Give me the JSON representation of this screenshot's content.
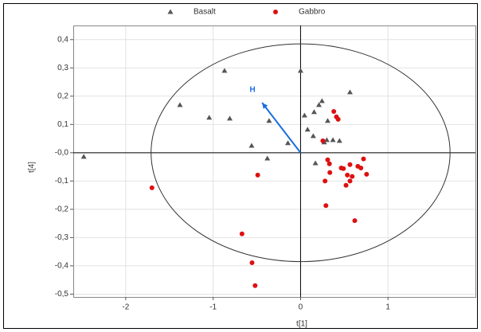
{
  "chart_data": {
    "type": "scatter",
    "x_label": "t[1]",
    "y_label": "t[4]",
    "xlim": [
      -2.6,
      2.0
    ],
    "ylim": [
      -0.51,
      0.45
    ],
    "xticks": [
      -2,
      -1,
      0,
      1
    ],
    "yticks": [
      {
        "value": 0.4,
        "label": "0,4"
      },
      {
        "value": 0.3,
        "label": "0,3"
      },
      {
        "value": 0.2,
        "label": "0,2"
      },
      {
        "value": 0.1,
        "label": "0,1"
      },
      {
        "value": 0,
        "label": "-0,0"
      },
      {
        "value": -0.1,
        "label": "-0,1"
      },
      {
        "value": -0.2,
        "label": "-0,2"
      },
      {
        "value": -0.3,
        "label": "-0,3"
      },
      {
        "value": -0.4,
        "label": "-0,4"
      },
      {
        "value": -0.5,
        "label": "-0,5"
      }
    ],
    "grid": true,
    "legend": "top",
    "ellipse": {
      "x_radius": 1.71,
      "y_radius": 0.385
    },
    "annotations": [
      {
        "text": "H",
        "x": -0.44,
        "y": 0.177,
        "color": "#1a6fe0"
      }
    ],
    "series": [
      {
        "name": "Basalt",
        "color": "#555555",
        "marker": "triangle",
        "x": [
          -2.48,
          -1.38,
          -1.045,
          -0.87,
          -0.81,
          -0.56,
          -0.36,
          -0.38,
          -0.145,
          0.0,
          0.045,
          0.08,
          0.155,
          0.21,
          0.245,
          0.31,
          0.565,
          0.145,
          0.3,
          0.37,
          0.445,
          0.17,
          0.27
        ],
        "values": [
          -0.014,
          0.169,
          0.124,
          0.29,
          0.121,
          0.025,
          0.113,
          -0.02,
          0.034,
          0.29,
          0.132,
          0.082,
          0.144,
          0.169,
          0.183,
          0.113,
          0.214,
          0.059,
          0.045,
          0.045,
          0.042,
          -0.037,
          0.037
        ]
      },
      {
        "name": "Gabbro",
        "color": "#dd1111",
        "marker": "circle",
        "x": [
          -1.7,
          -0.49,
          -0.67,
          -0.555,
          -0.52,
          0.255,
          0.38,
          0.41,
          0.43,
          0.31,
          0.33,
          0.335,
          0.28,
          0.29,
          0.465,
          0.49,
          0.565,
          0.535,
          0.52,
          0.565,
          0.59,
          0.655,
          0.72,
          0.69,
          0.755,
          0.62
        ],
        "values": [
          -0.124,
          -0.079,
          -0.287,
          -0.389,
          -0.47,
          0.042,
          0.146,
          0.127,
          0.118,
          -0.025,
          -0.039,
          -0.07,
          -0.1,
          -0.187,
          -0.054,
          -0.056,
          -0.042,
          -0.079,
          -0.115,
          -0.1,
          -0.084,
          -0.048,
          -0.022,
          -0.054,
          -0.076,
          -0.24
        ]
      }
    ]
  }
}
